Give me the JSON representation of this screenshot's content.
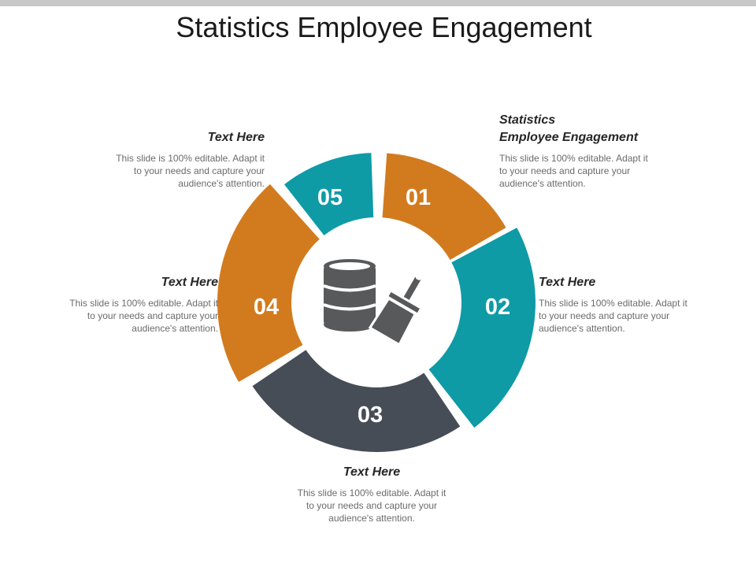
{
  "title": "Statistics Employee Engagement",
  "colors": {
    "orange": "#D27B1E",
    "teal": "#0E9BA6",
    "slate": "#474D57",
    "icon": "#58595B",
    "white": "#FFFFFF"
  },
  "segments": [
    {
      "number": "01",
      "color": "#D27B1E"
    },
    {
      "number": "02",
      "color": "#0E9BA6"
    },
    {
      "number": "03",
      "color": "#474D57"
    },
    {
      "number": "04",
      "color": "#D27B1E"
    },
    {
      "number": "05",
      "color": "#0E9BA6"
    }
  ],
  "center_icon": "database-brush-icon",
  "blocks": [
    {
      "heading_line1": "Statistics",
      "heading_line2": "Employee Engagement",
      "body": "This slide is 100% editable. Adapt it to your needs and capture your audience's attention."
    },
    {
      "heading": "Text Here",
      "body": "This slide is 100% editable. Adapt it to your needs and capture your audience's attention."
    },
    {
      "heading": "Text Here",
      "body": "This slide is 100% editable. Adapt it to your needs and capture your audience's attention."
    },
    {
      "heading": "Text Here",
      "body": "This slide is 100% editable. Adapt it to your needs and capture your audience's attention."
    },
    {
      "heading": "Text Here",
      "body": "This slide is 100% editable. Adapt it to your needs and capture your audience's attention."
    }
  ]
}
